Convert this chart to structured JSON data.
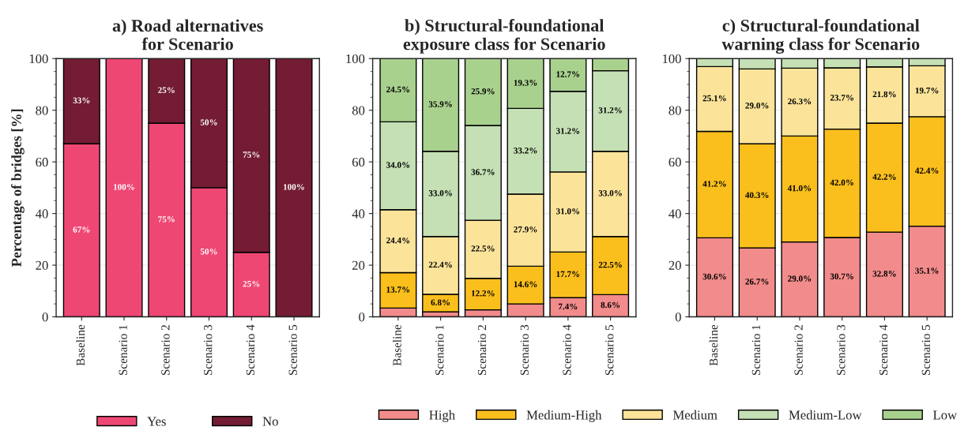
{
  "chart_data": [
    {
      "type": "bar",
      "title": "a) Road alternatives\nfor Scenario",
      "ylabel": "Percentage of bridges [%]",
      "categories": [
        "Baseline",
        "Scenario 1",
        "Scenario 2",
        "Scenario 3",
        "Scenario 4",
        "Scenario 5"
      ],
      "stacked": true,
      "ylim": [
        0,
        100
      ],
      "yticks": [
        0,
        20,
        40,
        60,
        80,
        100
      ],
      "grid": "y",
      "legend": "bottom",
      "series": [
        {
          "name": "Yes",
          "color": "#ef4774",
          "values": [
            67,
            100,
            75,
            50,
            25,
            0
          ],
          "value_labels": [
            "67%",
            "100%",
            "75%",
            "50%",
            "25%",
            null
          ]
        },
        {
          "name": "No",
          "color": "#731c33",
          "values": [
            33,
            0,
            25,
            50,
            75,
            100
          ],
          "value_labels": [
            "33%",
            null,
            "25%",
            "50%",
            "75%",
            "100%"
          ]
        }
      ]
    },
    {
      "type": "bar",
      "title": "b) Structural-foundational\nexposure class for Scenario",
      "categories": [
        "Baseline",
        "Scenario 1",
        "Scenario 2",
        "Scenario 3",
        "Scenario 4",
        "Scenario 5"
      ],
      "stacked": true,
      "ylim": [
        0,
        100
      ],
      "yticks": [
        0,
        20,
        40,
        60,
        80,
        100
      ],
      "grid": "y",
      "legend": "bottom",
      "series": [
        {
          "name": "High",
          "color": "#f28b8b",
          "values": [
            3.4,
            1.9,
            2.7,
            5.0,
            7.4,
            8.6
          ],
          "value_labels": [
            null,
            null,
            null,
            null,
            "7.4%",
            "8.6%"
          ]
        },
        {
          "name": "Medium-High",
          "color": "#fbbf1d",
          "values": [
            13.7,
            6.8,
            12.2,
            14.6,
            17.7,
            22.5
          ],
          "value_labels": [
            "13.7%",
            "6.8%",
            "12.2%",
            "14.6%",
            "17.7%",
            "22.5%"
          ]
        },
        {
          "name": "Medium",
          "color": "#fbe49a",
          "values": [
            24.4,
            22.4,
            22.5,
            27.9,
            31.0,
            33.0
          ],
          "value_labels": [
            "24.4%",
            "22.4%",
            "22.5%",
            "27.9%",
            "31.0%",
            "33.0%"
          ]
        },
        {
          "name": "Medium-Low",
          "color": "#c5e0b4",
          "values": [
            34.0,
            33.0,
            36.7,
            33.2,
            31.2,
            31.2
          ],
          "value_labels": [
            "34.0%",
            "33.0%",
            "36.7%",
            "33.2%",
            "31.2%",
            "31.2%"
          ]
        },
        {
          "name": "Low",
          "color": "#a9d18e",
          "values": [
            24.5,
            35.9,
            25.9,
            19.3,
            12.7,
            4.7
          ],
          "value_labels": [
            "24.5%",
            "35.9%",
            "25.9%",
            "19.3%",
            "12.7%",
            null
          ]
        }
      ]
    },
    {
      "type": "bar",
      "title": "c) Structural-foundational\nwarning class for Scenario",
      "categories": [
        "Baseline",
        "Scenario 1",
        "Scenario 2",
        "Scenario 3",
        "Scenario 4",
        "Scenario 5"
      ],
      "stacked": true,
      "ylim": [
        0,
        100
      ],
      "yticks": [
        0,
        20,
        40,
        60,
        80,
        100
      ],
      "grid": "y",
      "series": [
        {
          "color": "#f28b8b",
          "values": [
            30.6,
            26.7,
            29.0,
            30.7,
            32.8,
            35.1
          ],
          "value_labels": [
            "30.6%",
            "26.7%",
            "29.0%",
            "30.7%",
            "32.8%",
            "35.1%"
          ]
        },
        {
          "color": "#fbbf1d",
          "values": [
            41.2,
            40.3,
            41.0,
            42.0,
            42.2,
            42.4
          ],
          "value_labels": [
            "41.2%",
            "40.3%",
            "41.0%",
            "42.0%",
            "42.2%",
            "42.4%"
          ]
        },
        {
          "color": "#fbe49a",
          "values": [
            25.1,
            29.0,
            26.3,
            23.7,
            21.8,
            19.7
          ],
          "value_labels": [
            "25.1%",
            "29.0%",
            "26.3%",
            "23.7%",
            "21.8%",
            "19.7%"
          ]
        },
        {
          "color": "#c5e0b4",
          "values": [
            3.1,
            4.0,
            3.7,
            3.6,
            3.2,
            2.8
          ],
          "value_labels": [
            null,
            null,
            null,
            null,
            null,
            null
          ]
        }
      ]
    }
  ]
}
